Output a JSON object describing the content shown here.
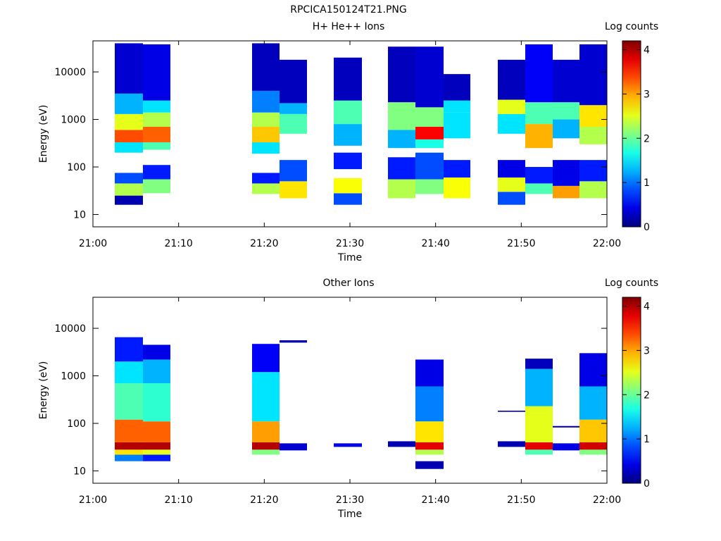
{
  "figure_title": "RPCICA150124T21.PNG",
  "chart_data": [
    {
      "type": "heatmap",
      "title": "H+ He++ Ions",
      "xlabel": "Time",
      "ylabel": "Energy (eV)",
      "x_ticks": [
        "21:00",
        "21:10",
        "21:20",
        "21:30",
        "21:40",
        "21:50",
        "22:00"
      ],
      "xlim": [
        "21:00",
        "22:00"
      ],
      "y_scale": "log",
      "y_ticks": [
        10,
        100,
        1000,
        10000
      ],
      "y_tick_labels": [
        "10",
        "100",
        "1000",
        "10000"
      ],
      "ylim": [
        5.5,
        45000
      ],
      "colorbar": {
        "label": "Log counts",
        "min": 0,
        "max": 4.2,
        "ticks": [
          "0",
          "1",
          "2",
          "3",
          "4"
        ],
        "colormap": "jet"
      }
    },
    {
      "type": "heatmap",
      "title": "Other Ions",
      "xlabel": "Time",
      "ylabel": "Energy (eV)",
      "x_ticks": [
        "21:00",
        "21:10",
        "21:20",
        "21:30",
        "21:40",
        "21:50",
        "22:00"
      ],
      "xlim": [
        "21:00",
        "22:00"
      ],
      "y_scale": "log",
      "y_ticks": [
        10,
        100,
        1000,
        10000
      ],
      "y_tick_labels": [
        "10",
        "100",
        "1000",
        "10000"
      ],
      "ylim": [
        5.5,
        45000
      ],
      "colorbar": {
        "label": "Log counts",
        "min": 0,
        "max": 4.2,
        "ticks": [
          "0",
          "1",
          "2",
          "3",
          "4"
        ],
        "colormap": "jet"
      }
    }
  ]
}
